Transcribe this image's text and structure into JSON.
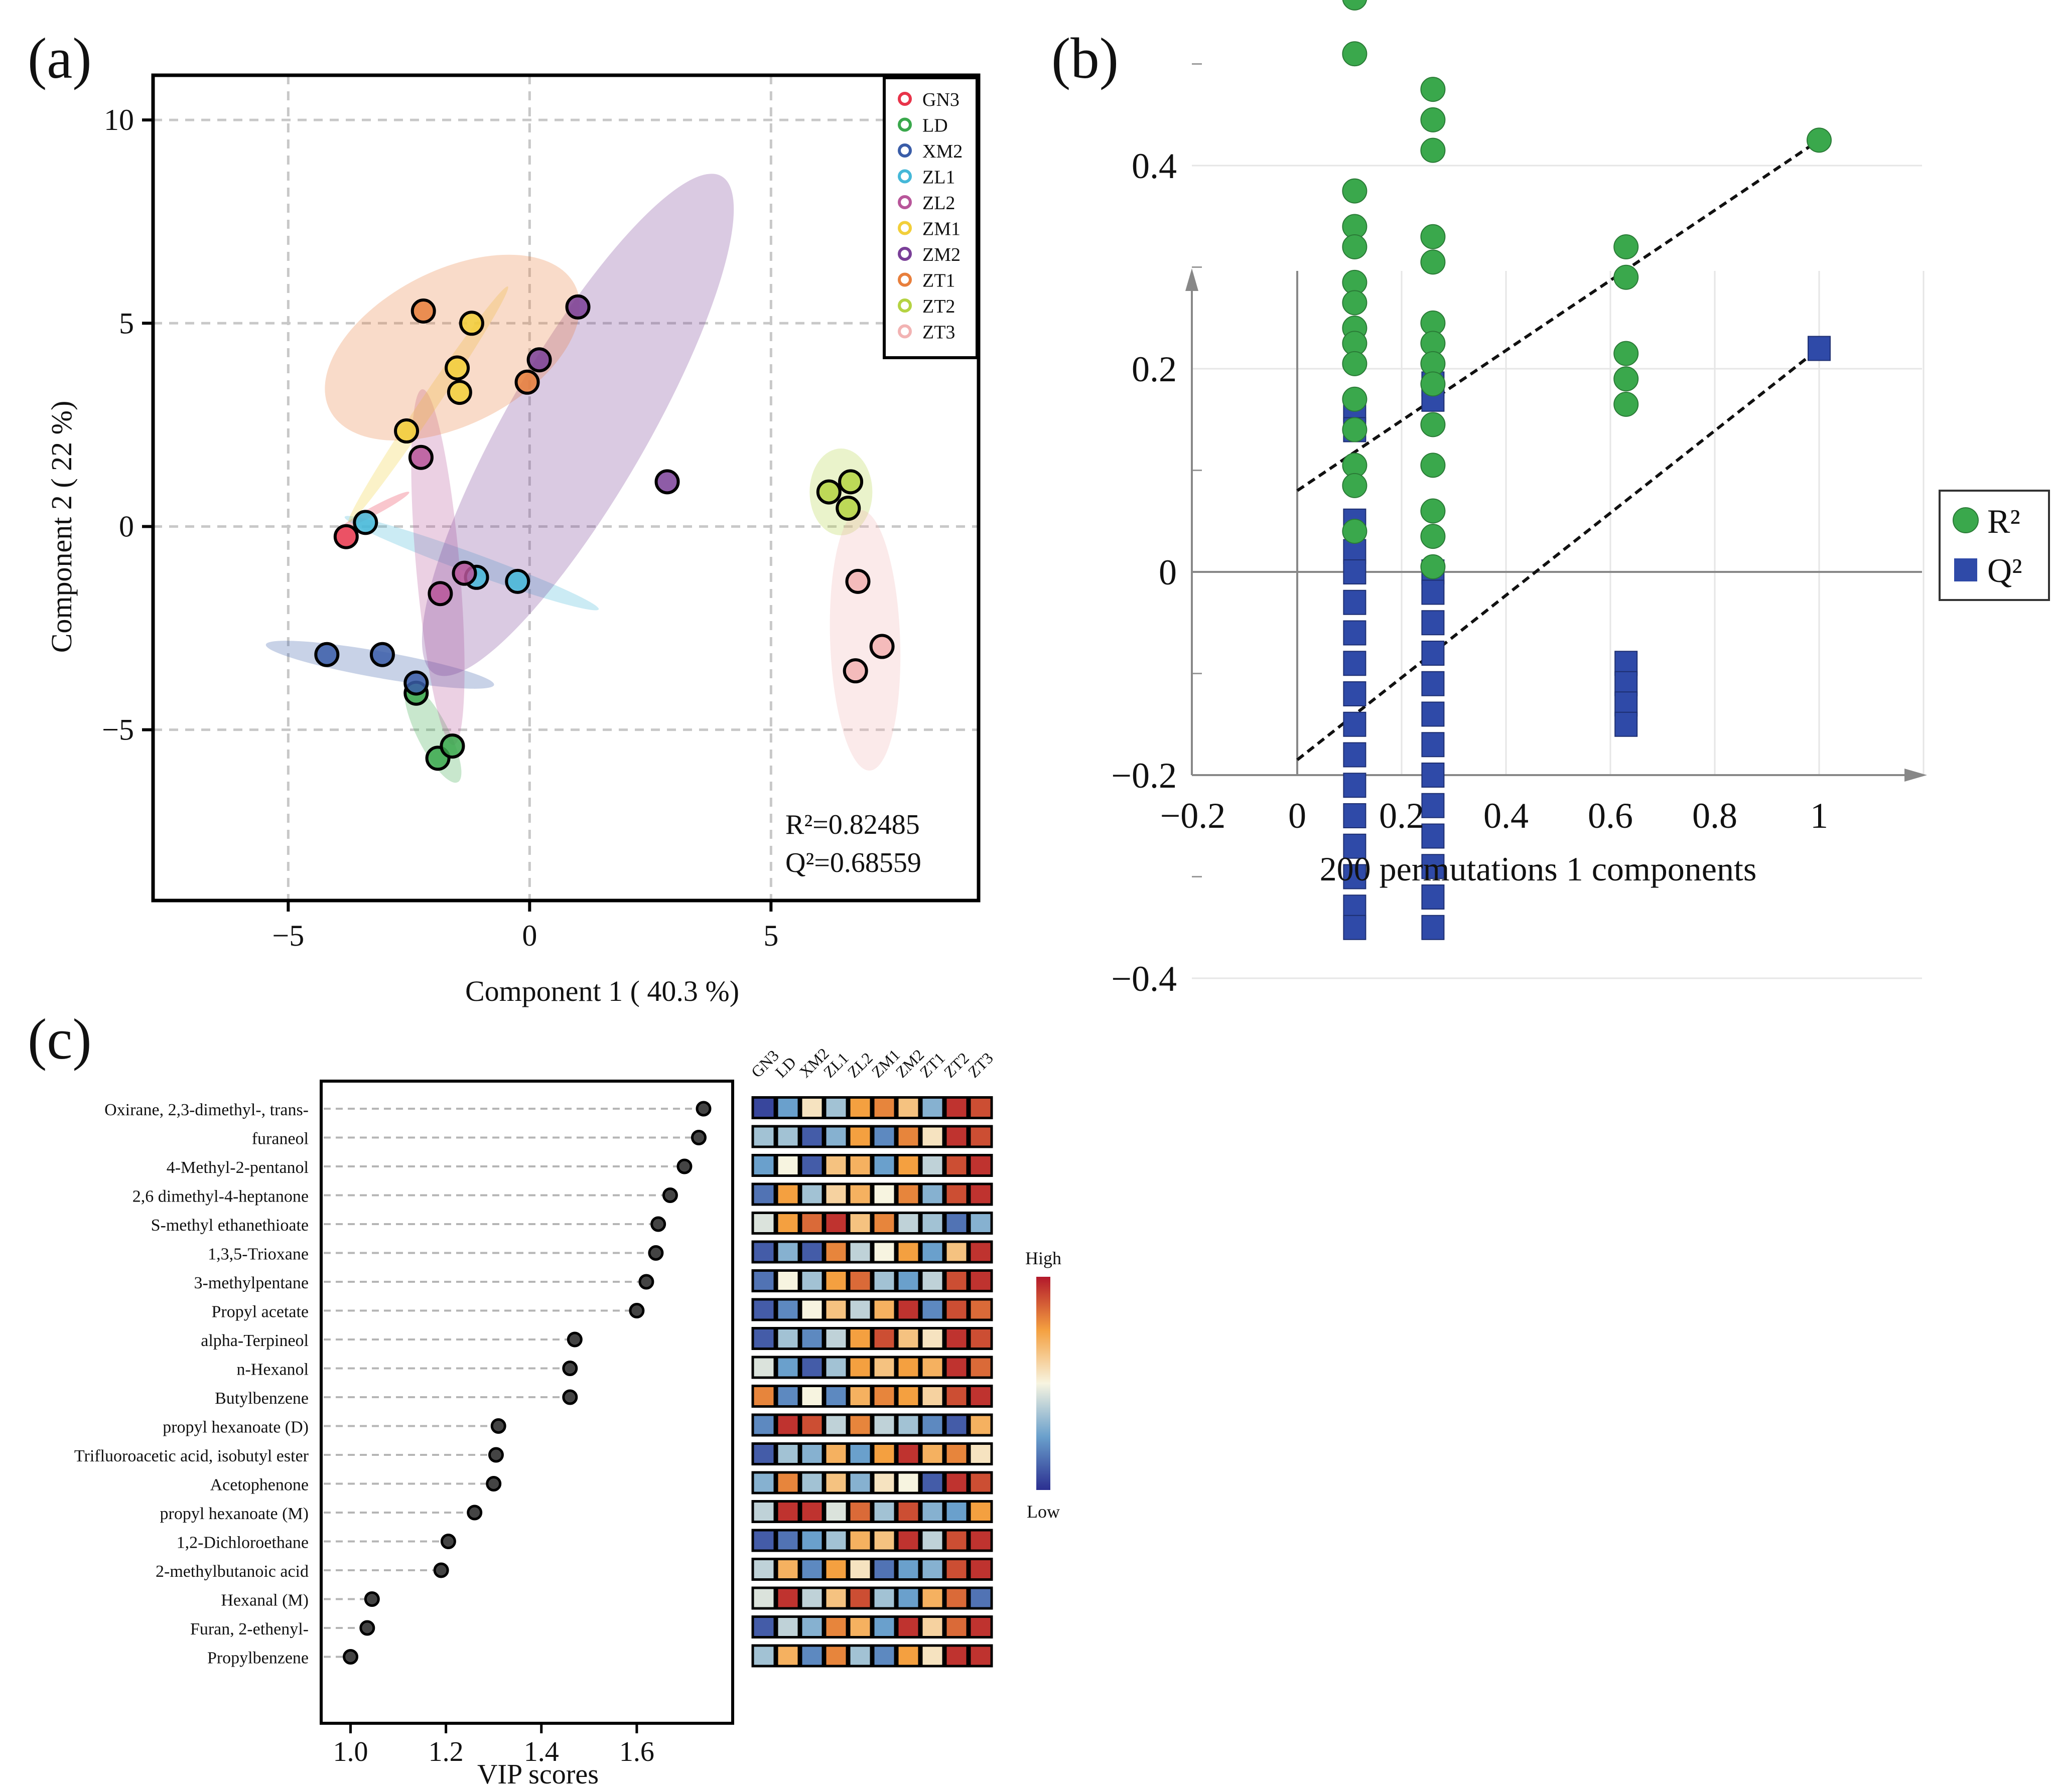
{
  "colors": {
    "GN3": "#e8344a",
    "LD": "#3aa84c",
    "XM2": "#3a5da8",
    "ZL1": "#45b8d8",
    "ZL2": "#b8569a",
    "ZM1": "#f2cf3a",
    "ZM2": "#7a3f98",
    "ZT1": "#e87f3c",
    "ZT2": "#b5d343",
    "ZT3": "#f2b3b3",
    "R2": "#3aa84c",
    "Q2": "#2f4aa8"
  },
  "panels": {
    "a": "(a)",
    "b": "(b)",
    "c": "(c)"
  },
  "chart_data": [
    {
      "id": "a",
      "type": "scatter",
      "xlabel": "Component 1 ( 40.3 %)",
      "ylabel": "Component 2 ( 22 %)",
      "xlim": [
        -7.8,
        9.3
      ],
      "ylim": [
        -9.2,
        11.1
      ],
      "xticks": [
        -5,
        0,
        5
      ],
      "xtick_labels": [
        "−5",
        "0",
        "5"
      ],
      "yticks": [
        -5,
        0,
        5,
        10
      ],
      "ytick_labels": [
        "−5",
        "0",
        "5",
        "10"
      ],
      "grid": true,
      "legend": "top-right",
      "stats": [
        "R²=0.82485",
        "Q²=0.68559"
      ],
      "groups": [
        {
          "name": "GN3",
          "points": [
            [
              -3.8,
              -0.25
            ]
          ],
          "ellipse": {
            "cx": -3.2,
            "cy": 0.4,
            "rx": 1.6,
            "ry": 0.18,
            "rot": -28
          }
        },
        {
          "name": "LD",
          "points": [
            [
              -2.35,
              -4.1
            ],
            [
              -1.9,
              -5.7
            ],
            [
              -1.6,
              -5.4
            ]
          ],
          "ellipse": {
            "cx": -2.0,
            "cy": -5.1,
            "rx": 2.25,
            "ry": 0.65,
            "rot": 63
          }
        },
        {
          "name": "XM2",
          "points": [
            [
              -4.2,
              -3.15
            ],
            [
              -3.05,
              -3.15
            ],
            [
              -2.35,
              -3.85
            ]
          ],
          "ellipse": {
            "cx": -3.1,
            "cy": -3.4,
            "rx": 4.8,
            "ry": 0.55,
            "rot": 10
          }
        },
        {
          "name": "ZL1",
          "points": [
            [
              -3.4,
              0.1
            ],
            [
              -1.1,
              -1.25
            ],
            [
              -0.25,
              -1.35
            ]
          ],
          "ellipse": {
            "cx": -1.2,
            "cy": -0.9,
            "rx": 5.6,
            "ry": 0.42,
            "rot": 20
          }
        },
        {
          "name": "ZL2",
          "points": [
            [
              -2.25,
              1.7
            ],
            [
              -1.35,
              -1.15
            ],
            [
              -1.85,
              -1.65
            ]
          ],
          "ellipse": {
            "cx": -1.9,
            "cy": -1.0,
            "rx": 7.4,
            "ry": 0.9,
            "rot": 85
          }
        },
        {
          "name": "ZM1",
          "points": [
            [
              -2.55,
              2.35
            ],
            [
              -1.5,
              3.9
            ],
            [
              -1.45,
              3.3
            ],
            [
              -1.2,
              5.0
            ]
          ],
          "ellipse": {
            "cx": -2.1,
            "cy": 3.0,
            "rx": 5.9,
            "ry": 0.35,
            "rot": -56
          }
        },
        {
          "name": "ZM2",
          "points": [
            [
              0.2,
              4.1
            ],
            [
              1.0,
              5.4
            ],
            [
              2.85,
              1.1
            ]
          ],
          "ellipse": {
            "cx": 1.0,
            "cy": 2.5,
            "rx": 11.9,
            "ry": 2.9,
            "rot": -60
          }
        },
        {
          "name": "ZT1",
          "points": [
            [
              -2.2,
              5.3
            ],
            [
              -0.05,
              3.55
            ]
          ],
          "ellipse": {
            "cx": -1.6,
            "cy": 4.4,
            "rx": 5.7,
            "ry": 3.2,
            "rot": -27
          }
        },
        {
          "name": "ZT2",
          "points": [
            [
              6.2,
              0.85
            ],
            [
              6.65,
              1.1
            ],
            [
              6.6,
              0.45
            ]
          ],
          "ellipse": {
            "cx": 6.45,
            "cy": 0.85,
            "rx": 1.3,
            "ry": 1.8,
            "rot": 0
          }
        },
        {
          "name": "ZT3",
          "points": [
            [
              6.8,
              -1.35
            ],
            [
              7.3,
              -2.95
            ],
            [
              6.75,
              -3.55
            ]
          ],
          "ellipse": {
            "cx": 6.95,
            "cy": -2.8,
            "rx": 1.45,
            "ry": 5.4,
            "rot": -2
          }
        }
      ]
    },
    {
      "id": "b",
      "type": "scatter",
      "xlabel": "200 permutations 1 components",
      "xlim": [
        -0.22,
        1.2
      ],
      "ylim": [
        -0.42,
        0.6
      ],
      "xticks": [
        -0.2,
        0,
        0.2,
        0.4,
        0.6,
        0.8,
        1
      ],
      "xtick_labels": [
        "−0.2",
        "0",
        "0.2",
        "0.4",
        "0.6",
        "0.8",
        "1"
      ],
      "yticks": [
        -0.4,
        -0.2,
        0,
        0.2,
        0.4
      ],
      "ytick_labels": [
        "−0.4",
        "−0.2",
        "0",
        "0.2",
        "0.4"
      ],
      "grid": true,
      "legend": "right",
      "legend_labels": [
        "R²",
        "Q²"
      ],
      "series": [
        {
          "name": "R2",
          "marker": "circle",
          "points": [
            [
              0.11,
              0.565
            ],
            [
              0.11,
              0.51
            ],
            [
              0.11,
              0.375
            ],
            [
              0.11,
              0.34
            ],
            [
              0.11,
              0.32
            ],
            [
              0.11,
              0.285
            ],
            [
              0.11,
              0.265
            ],
            [
              0.11,
              0.24
            ],
            [
              0.11,
              0.225
            ],
            [
              0.11,
              0.205
            ],
            [
              0.11,
              0.17
            ],
            [
              0.11,
              0.14
            ],
            [
              0.11,
              0.105
            ],
            [
              0.11,
              0.085
            ],
            [
              0.11,
              0.04
            ],
            [
              0.26,
              0.475
            ],
            [
              0.26,
              0.445
            ],
            [
              0.26,
              0.415
            ],
            [
              0.26,
              0.33
            ],
            [
              0.26,
              0.305
            ],
            [
              0.26,
              0.245
            ],
            [
              0.26,
              0.225
            ],
            [
              0.26,
              0.205
            ],
            [
              0.26,
              0.185
            ],
            [
              0.26,
              0.145
            ],
            [
              0.26,
              0.105
            ],
            [
              0.26,
              0.06
            ],
            [
              0.26,
              0.035
            ],
            [
              0.26,
              0.005
            ],
            [
              0.63,
              0.32
            ],
            [
              0.63,
              0.29
            ],
            [
              0.63,
              0.215
            ],
            [
              0.63,
              0.19
            ],
            [
              0.63,
              0.165
            ],
            [
              1.0,
              0.425
            ]
          ]
        },
        {
          "name": "Q2",
          "marker": "square",
          "points": [
            [
              0.11,
              0.16
            ],
            [
              0.11,
              0.14
            ],
            [
              0.11,
              0.05
            ],
            [
              0.11,
              0.02
            ],
            [
              0.11,
              0.0
            ],
            [
              0.11,
              -0.03
            ],
            [
              0.11,
              -0.06
            ],
            [
              0.11,
              -0.09
            ],
            [
              0.11,
              -0.12
            ],
            [
              0.11,
              -0.15
            ],
            [
              0.11,
              -0.18
            ],
            [
              0.11,
              -0.21
            ],
            [
              0.11,
              -0.24
            ],
            [
              0.11,
              -0.27
            ],
            [
              0.11,
              -0.3
            ],
            [
              0.11,
              -0.33
            ],
            [
              0.11,
              -0.35
            ],
            [
              0.26,
              0.185
            ],
            [
              0.26,
              0.17
            ],
            [
              0.26,
              0.0
            ],
            [
              0.26,
              -0.02
            ],
            [
              0.26,
              -0.05
            ],
            [
              0.26,
              -0.08
            ],
            [
              0.26,
              -0.11
            ],
            [
              0.26,
              -0.14
            ],
            [
              0.26,
              -0.17
            ],
            [
              0.26,
              -0.2
            ],
            [
              0.26,
              -0.23
            ],
            [
              0.26,
              -0.26
            ],
            [
              0.26,
              -0.29
            ],
            [
              0.26,
              -0.32
            ],
            [
              0.26,
              -0.35
            ],
            [
              0.63,
              -0.09
            ],
            [
              0.63,
              -0.11
            ],
            [
              0.63,
              -0.13
            ],
            [
              0.63,
              -0.15
            ],
            [
              1.0,
              0.22
            ]
          ]
        }
      ],
      "lines": [
        {
          "name": "R2-fit",
          "x": [
            0,
            1
          ],
          "y": [
            0.08,
            0.425
          ]
        },
        {
          "name": "Q2-fit",
          "x": [
            0,
            1
          ],
          "y": [
            -0.185,
            0.22
          ]
        }
      ]
    },
    {
      "id": "c",
      "type": "scatter",
      "xlabel": "VIP scores",
      "xlim": [
        0.97,
        1.78
      ],
      "xticks": [
        1.0,
        1.2,
        1.4,
        1.6
      ],
      "xtick_labels": [
        "1.0",
        "1.2",
        "1.4",
        "1.6"
      ],
      "variables": [
        "Oxirane, 2,3-dimethyl-, trans-",
        "furaneol",
        "4-Methyl-2-pentanol",
        "2,6 dimethyl-4-heptanone",
        "S-methyl ethanethioate",
        "1,3,5-Trioxane",
        "3-methylpentane",
        "Propyl acetate",
        "alpha-Terpineol",
        "n-Hexanol",
        "Butylbenzene",
        "propyl hexanoate (D)",
        "Trifluoroacetic acid, isobutyl ester",
        "Acetophenone",
        "propyl hexanoate (M)",
        "1,2-Dichloroethane",
        "2-methylbutanoic acid",
        "Hexanal (M)",
        "Furan, 2-ethenyl-",
        "Propylbenzene"
      ],
      "vip": [
        1.74,
        1.73,
        1.7,
        1.67,
        1.645,
        1.64,
        1.62,
        1.6,
        1.47,
        1.46,
        1.46,
        1.31,
        1.305,
        1.3,
        1.26,
        1.205,
        1.19,
        1.045,
        1.035,
        1.0
      ]
    },
    {
      "id": "c-heatmap",
      "type": "heatmap",
      "columns": [
        "GN3",
        "LD",
        "XM2",
        "ZL1",
        "ZL2",
        "ZM1",
        "ZM2",
        "ZT1",
        "ZT2",
        "ZT3"
      ],
      "scale_high": "High",
      "scale_low": "Low",
      "values": [
        [
          0.05,
          0.25,
          0.55,
          0.35,
          0.75,
          0.8,
          0.65,
          0.3,
          0.95,
          0.9
        ],
        [
          0.35,
          0.35,
          0.1,
          0.3,
          0.75,
          0.2,
          0.8,
          0.55,
          0.95,
          0.9
        ],
        [
          0.25,
          0.5,
          0.1,
          0.65,
          0.7,
          0.25,
          0.75,
          0.4,
          0.9,
          0.95
        ],
        [
          0.15,
          0.75,
          0.35,
          0.6,
          0.7,
          0.5,
          0.8,
          0.3,
          0.9,
          0.95
        ],
        [
          0.45,
          0.75,
          0.85,
          0.95,
          0.65,
          0.8,
          0.4,
          0.35,
          0.15,
          0.3
        ],
        [
          0.1,
          0.3,
          0.1,
          0.8,
          0.4,
          0.5,
          0.75,
          0.25,
          0.65,
          0.95
        ],
        [
          0.15,
          0.5,
          0.35,
          0.75,
          0.85,
          0.35,
          0.25,
          0.4,
          0.9,
          0.95
        ],
        [
          0.1,
          0.2,
          0.5,
          0.65,
          0.4,
          0.7,
          0.95,
          0.2,
          0.9,
          0.85
        ],
        [
          0.1,
          0.35,
          0.2,
          0.4,
          0.75,
          0.9,
          0.65,
          0.55,
          0.95,
          0.9
        ],
        [
          0.45,
          0.25,
          0.1,
          0.35,
          0.75,
          0.65,
          0.75,
          0.7,
          0.95,
          0.85
        ],
        [
          0.8,
          0.2,
          0.5,
          0.2,
          0.7,
          0.8,
          0.75,
          0.6,
          0.9,
          0.95
        ],
        [
          0.2,
          0.95,
          0.9,
          0.4,
          0.8,
          0.4,
          0.35,
          0.2,
          0.1,
          0.7
        ],
        [
          0.1,
          0.35,
          0.3,
          0.7,
          0.25,
          0.75,
          0.95,
          0.7,
          0.8,
          0.55
        ],
        [
          0.3,
          0.8,
          0.35,
          0.65,
          0.3,
          0.55,
          0.5,
          0.1,
          0.95,
          0.9
        ],
        [
          0.4,
          0.95,
          0.95,
          0.45,
          0.85,
          0.35,
          0.9,
          0.3,
          0.25,
          0.75
        ],
        [
          0.1,
          0.15,
          0.25,
          0.35,
          0.7,
          0.65,
          0.95,
          0.4,
          0.9,
          0.95
        ],
        [
          0.4,
          0.7,
          0.2,
          0.75,
          0.55,
          0.15,
          0.25,
          0.3,
          0.9,
          0.95
        ],
        [
          0.45,
          0.95,
          0.4,
          0.65,
          0.9,
          0.35,
          0.25,
          0.7,
          0.85,
          0.15
        ],
        [
          0.1,
          0.4,
          0.3,
          0.8,
          0.7,
          0.25,
          0.95,
          0.6,
          0.85,
          0.95
        ],
        [
          0.35,
          0.7,
          0.2,
          0.8,
          0.35,
          0.2,
          0.75,
          0.55,
          0.95,
          0.95
        ]
      ]
    }
  ]
}
